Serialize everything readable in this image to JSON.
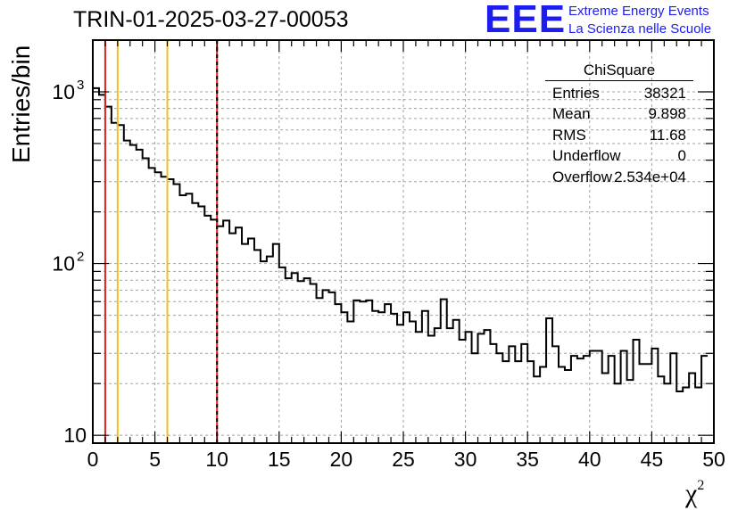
{
  "page": {
    "title": "TRIN-01-2025-03-27-00053",
    "logo_text": "EEE",
    "logo_line1": "Extreme Energy Events",
    "logo_line2": "La Scienza nelle Scuole",
    "colors": {
      "logo": "#1d1df0",
      "red_line": "#e02020",
      "yellow_line": "#f0c020",
      "grid": "#a0a0a0"
    }
  },
  "stats": {
    "title": "ChiSquare",
    "rows": [
      {
        "key": "Entries",
        "value": "38321"
      },
      {
        "key": "Mean",
        "value": "9.898"
      },
      {
        "key": "RMS",
        "value": "11.68"
      },
      {
        "key": "Underflow",
        "value": "0"
      },
      {
        "key": "Overflow",
        "value": "2.534e+04"
      }
    ]
  },
  "chart_data": {
    "type": "histogram",
    "title": "TRIN-01-2025-03-27-00053",
    "xlabel": "χ",
    "xlabel_sup": "2",
    "ylabel": "Entries/bin",
    "xlim": [
      0,
      50
    ],
    "ylim": [
      9,
      2000
    ],
    "yscale": "log",
    "bin_width": 0.5,
    "grid": true,
    "x_ticks": [
      "0",
      "5",
      "10",
      "15",
      "20",
      "25",
      "30",
      "35",
      "40",
      "45",
      "50"
    ],
    "y_ticks": [
      {
        "value": 10,
        "label": "10"
      },
      {
        "value": 100,
        "label": "10",
        "exp": "2"
      },
      {
        "value": 1000,
        "label": "10",
        "exp": "3"
      }
    ],
    "values": [
      1050,
      960,
      820,
      660,
      640,
      520,
      490,
      460,
      410,
      360,
      340,
      320,
      310,
      290,
      250,
      255,
      225,
      215,
      190,
      180,
      165,
      178,
      150,
      162,
      130,
      140,
      120,
      103,
      110,
      130,
      95,
      82,
      88,
      79,
      82,
      76,
      63,
      70,
      68,
      58,
      52,
      46,
      61,
      60,
      61,
      53,
      52,
      58,
      51,
      44,
      52,
      46,
      40,
      53,
      38,
      42,
      62,
      42,
      47,
      36,
      40,
      30,
      39,
      41,
      34,
      30,
      27,
      33,
      27,
      34,
      27,
      22,
      25,
      48,
      33,
      25,
      24,
      29,
      28,
      29,
      31,
      31,
      23,
      29,
      20,
      31,
      21,
      36,
      26,
      26,
      32,
      22,
      20,
      30,
      18,
      19,
      23,
      19,
      29
    ],
    "vertical_lines": [
      {
        "x": 1,
        "color": "red",
        "style": "solid"
      },
      {
        "x": 2,
        "color": "yellow",
        "style": "solid"
      },
      {
        "x": 6,
        "color": "yellow",
        "style": "solid"
      },
      {
        "x": 10,
        "color": "red",
        "style": "dashed-red-black"
      }
    ]
  }
}
